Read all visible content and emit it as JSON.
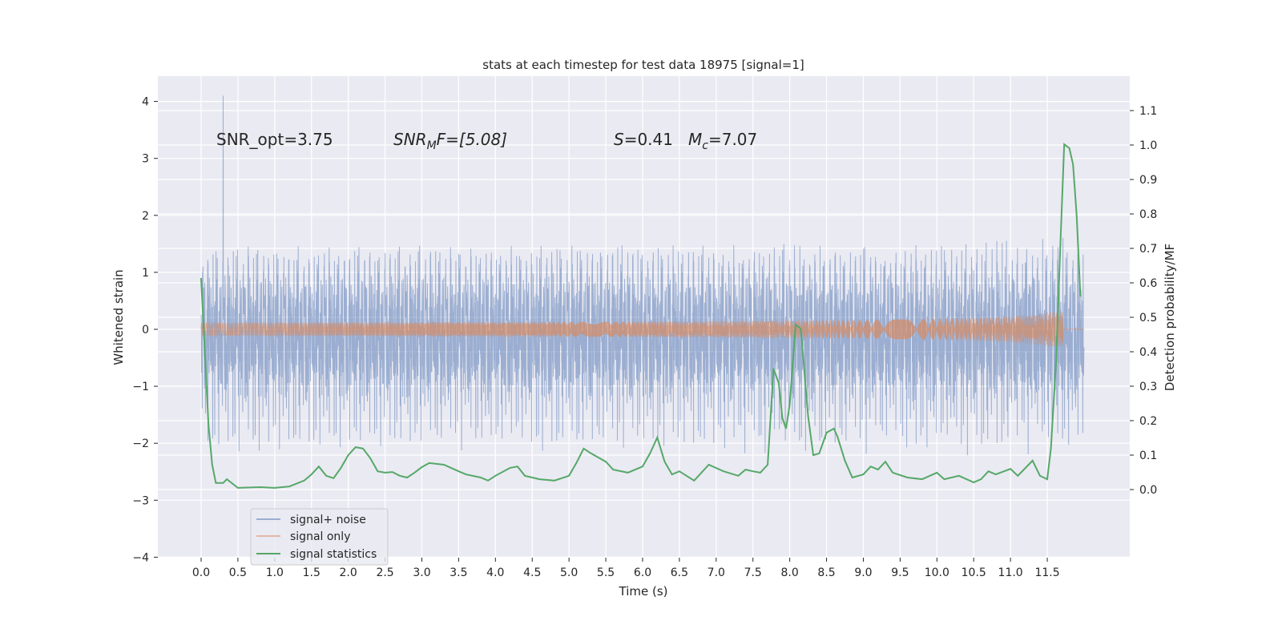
{
  "chart_data": {
    "type": "line",
    "title": "stats at each timestep for test data 18975 [signal=1]",
    "xlabel": "Time (s)",
    "ylabel": "Whitened strain",
    "y2label": "Detection probability/MF",
    "xlim": [
      -0.6,
      12.6
    ],
    "ylim": [
      -4,
      4.4
    ],
    "y2lim": [
      -0.2,
      1.2
    ],
    "grid": true,
    "legend_placement": "lower-left",
    "xticks": [
      "0.0",
      "0.5",
      "1.0",
      "1.5",
      "2.0",
      "2.5",
      "3.0",
      "3.5",
      "4.0",
      "4.5",
      "5.0",
      "5.5",
      "6.0",
      "6.5",
      "7.0",
      "7.5",
      "8.0",
      "8.5",
      "9.0",
      "9.5",
      "10.0",
      "10.5",
      "11.0",
      "11.5"
    ],
    "yticks": [
      "4",
      "3",
      "2",
      "1",
      "0",
      "−1",
      "−2",
      "−3",
      "−4"
    ],
    "y2ticks": [
      "1.1",
      "1.0",
      "0.9",
      "0.8",
      "0.7",
      "0.6",
      "0.5",
      "0.4",
      "0.3",
      "0.2",
      "0.1",
      "0.0"
    ],
    "annotations": {
      "snr_opt": "SNR_opt=3.75",
      "snr_mf_base": "SNR",
      "snr_mf_sub": "M",
      "snr_mf_rest": "F=[5.08]",
      "s_label": "S",
      "s_value": "=0.41",
      "mc_base": "M",
      "mc_sub": "c",
      "mc_value": "=7.07"
    },
    "series": [
      {
        "name": "signal+ noise",
        "color": "#4C72B0",
        "axis": "left",
        "description_values": {
          "t_end": 12.0,
          "noise_std": 0.8,
          "max_spike": 4.1
        }
      },
      {
        "name": "signal only",
        "color": "#DD8452",
        "axis": "left",
        "description_values": {
          "chirp_peak_time": 11.7,
          "peak_amplitude": 0.45
        }
      },
      {
        "name": "signal statistics",
        "color": "#55A868",
        "axis": "right",
        "x": [
          0,
          0.1,
          0.15,
          0.2,
          0.3,
          0.35,
          0.5,
          0.8,
          1.0,
          1.2,
          1.4,
          1.5,
          1.6,
          1.7,
          1.8,
          1.9,
          2.0,
          2.1,
          2.2,
          2.3,
          2.4,
          2.5,
          2.6,
          2.7,
          2.8,
          2.9,
          3.0,
          3.1,
          3.3,
          3.5,
          3.6,
          3.8,
          3.9,
          4.0,
          4.2,
          4.3,
          4.4,
          4.6,
          4.8,
          5.0,
          5.1,
          5.2,
          5.3,
          5.5,
          5.6,
          5.8,
          6.0,
          6.1,
          6.2,
          6.3,
          6.4,
          6.5,
          6.7,
          6.8,
          6.9,
          7.1,
          7.3,
          7.4,
          7.5,
          7.6,
          7.7,
          7.78,
          7.85,
          7.9,
          7.95,
          8.0,
          8.08,
          8.15,
          8.25,
          8.32,
          8.4,
          8.5,
          8.6,
          8.65,
          8.75,
          8.85,
          9.0,
          9.1,
          9.2,
          9.3,
          9.4,
          9.6,
          9.8,
          10.0,
          10.1,
          10.3,
          10.5,
          10.6,
          10.7,
          10.8,
          11.0,
          11.1,
          11.3,
          11.4,
          11.5,
          11.55,
          11.62,
          11.68,
          11.73,
          11.8,
          11.85,
          11.9,
          11.95
        ],
        "y": [
          0.614,
          0.188,
          0.072,
          0.019,
          0.019,
          0.03,
          0.005,
          0.007,
          0.005,
          0.009,
          0.026,
          0.044,
          0.067,
          0.04,
          0.033,
          0.063,
          0.1,
          0.123,
          0.119,
          0.091,
          0.053,
          0.049,
          0.051,
          0.04,
          0.035,
          0.049,
          0.065,
          0.077,
          0.072,
          0.053,
          0.044,
          0.035,
          0.026,
          0.04,
          0.063,
          0.067,
          0.04,
          0.03,
          0.026,
          0.04,
          0.077,
          0.119,
          0.105,
          0.081,
          0.058,
          0.049,
          0.067,
          0.105,
          0.151,
          0.081,
          0.044,
          0.053,
          0.026,
          0.049,
          0.072,
          0.053,
          0.04,
          0.058,
          0.053,
          0.049,
          0.072,
          0.351,
          0.309,
          0.207,
          0.177,
          0.247,
          0.479,
          0.467,
          0.212,
          0.1,
          0.105,
          0.165,
          0.177,
          0.153,
          0.084,
          0.035,
          0.044,
          0.067,
          0.058,
          0.081,
          0.049,
          0.035,
          0.03,
          0.049,
          0.03,
          0.04,
          0.021,
          0.03,
          0.053,
          0.044,
          0.06,
          0.04,
          0.084,
          0.04,
          0.03,
          0.119,
          0.374,
          0.723,
          1.002,
          0.991,
          0.944,
          0.793,
          0.56
        ]
      }
    ]
  }
}
